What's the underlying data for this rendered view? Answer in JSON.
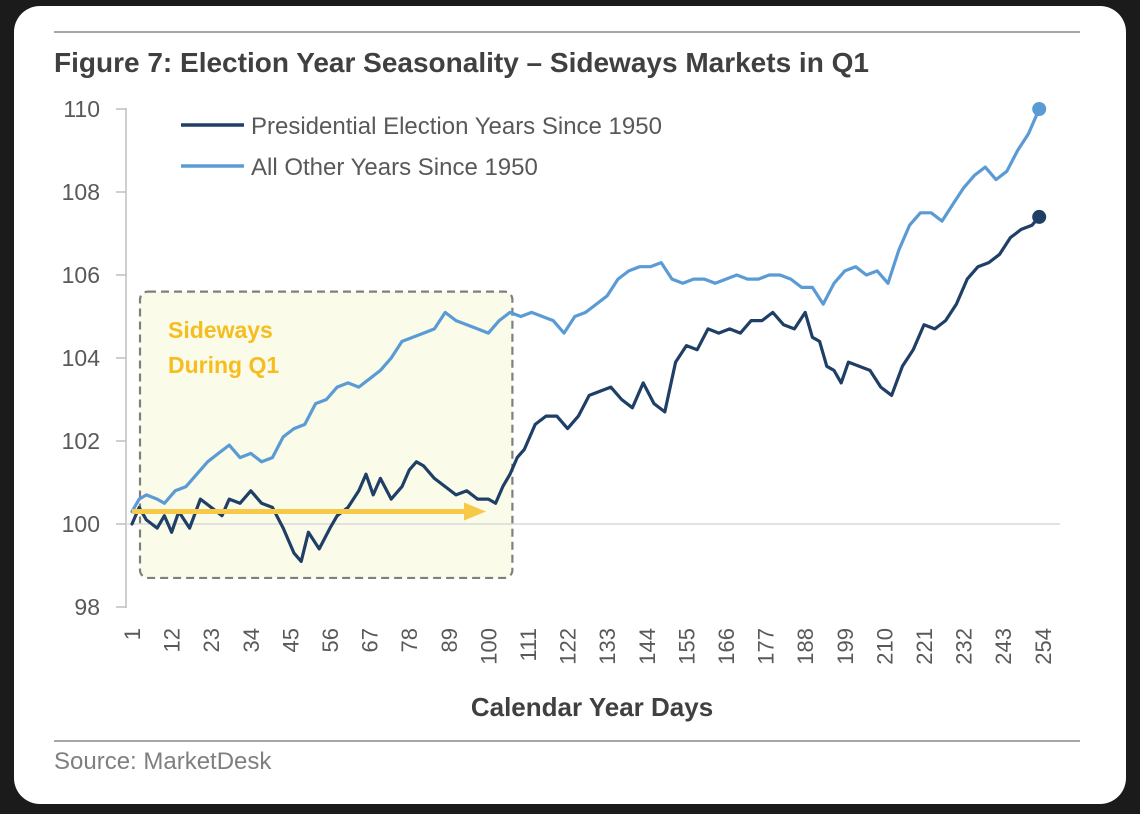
{
  "figure": {
    "title": "Figure 7: Election Year Seasonality – Sideways Markets in Q1",
    "source": "Source: MarketDesk"
  },
  "annotation": {
    "line1": "Sideways",
    "line2": "During Q1",
    "box_x_range": [
      1,
      100
    ],
    "box_y_range": [
      98.7,
      105.6
    ],
    "arrow_y": 100.3
  },
  "colors": {
    "presidential": "#1f3f66",
    "other": "#5b9bd5",
    "annotation_text": "#f5bd1f",
    "annotation_fill": "#fafbe8",
    "arrow": "#f7c948",
    "axis_text": "#595959",
    "title_text": "#404040"
  },
  "chart_data": {
    "type": "line",
    "title": "Figure 7: Election Year Seasonality – Sideways Markets in Q1",
    "xlabel": "Calendar Year Days",
    "ylabel": "",
    "xlim": [
      1,
      253
    ],
    "ylim": [
      98,
      110
    ],
    "yticks": [
      98,
      100,
      102,
      104,
      106,
      108,
      110
    ],
    "xticks": [
      1,
      12,
      23,
      34,
      45,
      56,
      67,
      78,
      89,
      100,
      111,
      122,
      133,
      144,
      155,
      166,
      177,
      188,
      199,
      210,
      221,
      232,
      243,
      254
    ],
    "grid": "horizontal line at 100",
    "legend": "top-left",
    "series": [
      {
        "name": "Presidential Election Years Since 1950",
        "x": [
          1,
          3,
          5,
          8,
          10,
          12,
          14,
          17,
          20,
          23,
          26,
          28,
          31,
          34,
          37,
          40,
          43,
          46,
          48,
          50,
          53,
          56,
          58,
          61,
          64,
          66,
          68,
          70,
          73,
          76,
          78,
          80,
          82,
          85,
          88,
          91,
          94,
          97,
          100,
          102,
          104,
          106,
          108,
          110,
          113,
          116,
          119,
          122,
          125,
          128,
          131,
          134,
          137,
          140,
          143,
          146,
          149,
          152,
          155,
          158,
          161,
          164,
          167,
          170,
          173,
          176,
          179,
          182,
          185,
          188,
          190,
          192,
          194,
          196,
          198,
          200,
          203,
          206,
          209,
          212,
          215,
          218,
          221,
          224,
          227,
          230,
          233,
          236,
          239,
          242,
          245,
          248,
          251,
          253
        ],
        "values": [
          100.0,
          100.4,
          100.1,
          99.9,
          100.2,
          99.8,
          100.3,
          99.9,
          100.6,
          100.4,
          100.2,
          100.6,
          100.5,
          100.8,
          100.5,
          100.4,
          99.9,
          99.3,
          99.1,
          99.8,
          99.4,
          99.9,
          100.2,
          100.4,
          100.8,
          101.2,
          100.7,
          101.1,
          100.6,
          100.9,
          101.3,
          101.5,
          101.4,
          101.1,
          100.9,
          100.7,
          100.8,
          100.6,
          100.6,
          100.5,
          100.9,
          101.2,
          101.6,
          101.8,
          102.4,
          102.6,
          102.6,
          102.3,
          102.6,
          103.1,
          103.2,
          103.3,
          103.0,
          102.8,
          103.4,
          102.9,
          102.7,
          103.9,
          104.3,
          104.2,
          104.7,
          104.6,
          104.7,
          104.6,
          104.9,
          104.9,
          105.1,
          104.8,
          104.7,
          105.1,
          104.5,
          104.4,
          103.8,
          103.7,
          103.4,
          103.9,
          103.8,
          103.7,
          103.3,
          103.1,
          103.8,
          104.2,
          104.8,
          104.7,
          104.9,
          105.3,
          105.9,
          106.2,
          106.3,
          106.5,
          106.9,
          107.1,
          107.2,
          107.4
        ]
      },
      {
        "name": "All Other Years Since 1950",
        "x": [
          1,
          3,
          5,
          8,
          10,
          13,
          16,
          19,
          22,
          25,
          28,
          31,
          34,
          37,
          40,
          43,
          46,
          49,
          52,
          55,
          58,
          61,
          64,
          67,
          70,
          73,
          76,
          79,
          82,
          85,
          88,
          91,
          94,
          97,
          100,
          103,
          106,
          109,
          112,
          115,
          118,
          121,
          124,
          127,
          130,
          133,
          136,
          139,
          142,
          145,
          148,
          151,
          154,
          157,
          160,
          163,
          166,
          169,
          172,
          175,
          178,
          181,
          184,
          187,
          190,
          193,
          196,
          199,
          202,
          205,
          208,
          211,
          214,
          217,
          220,
          223,
          226,
          229,
          232,
          235,
          238,
          241,
          244,
          247,
          250,
          253
        ],
        "values": [
          100.3,
          100.6,
          100.7,
          100.6,
          100.5,
          100.8,
          100.9,
          101.2,
          101.5,
          101.7,
          101.9,
          101.6,
          101.7,
          101.5,
          101.6,
          102.1,
          102.3,
          102.4,
          102.9,
          103.0,
          103.3,
          103.4,
          103.3,
          103.5,
          103.7,
          104.0,
          104.4,
          104.5,
          104.6,
          104.7,
          105.1,
          104.9,
          104.8,
          104.7,
          104.6,
          104.9,
          105.1,
          105.0,
          105.1,
          105.0,
          104.9,
          104.6,
          105.0,
          105.1,
          105.3,
          105.5,
          105.9,
          106.1,
          106.2,
          106.2,
          106.3,
          105.9,
          105.8,
          105.9,
          105.9,
          105.8,
          105.9,
          106.0,
          105.9,
          105.9,
          106.0,
          106.0,
          105.9,
          105.7,
          105.7,
          105.3,
          105.8,
          106.1,
          106.2,
          106.0,
          106.1,
          105.8,
          106.6,
          107.2,
          107.5,
          107.5,
          107.3,
          107.7,
          108.1,
          108.4,
          108.6,
          108.3,
          108.5,
          109.0,
          109.4,
          110.0
        ]
      }
    ]
  }
}
